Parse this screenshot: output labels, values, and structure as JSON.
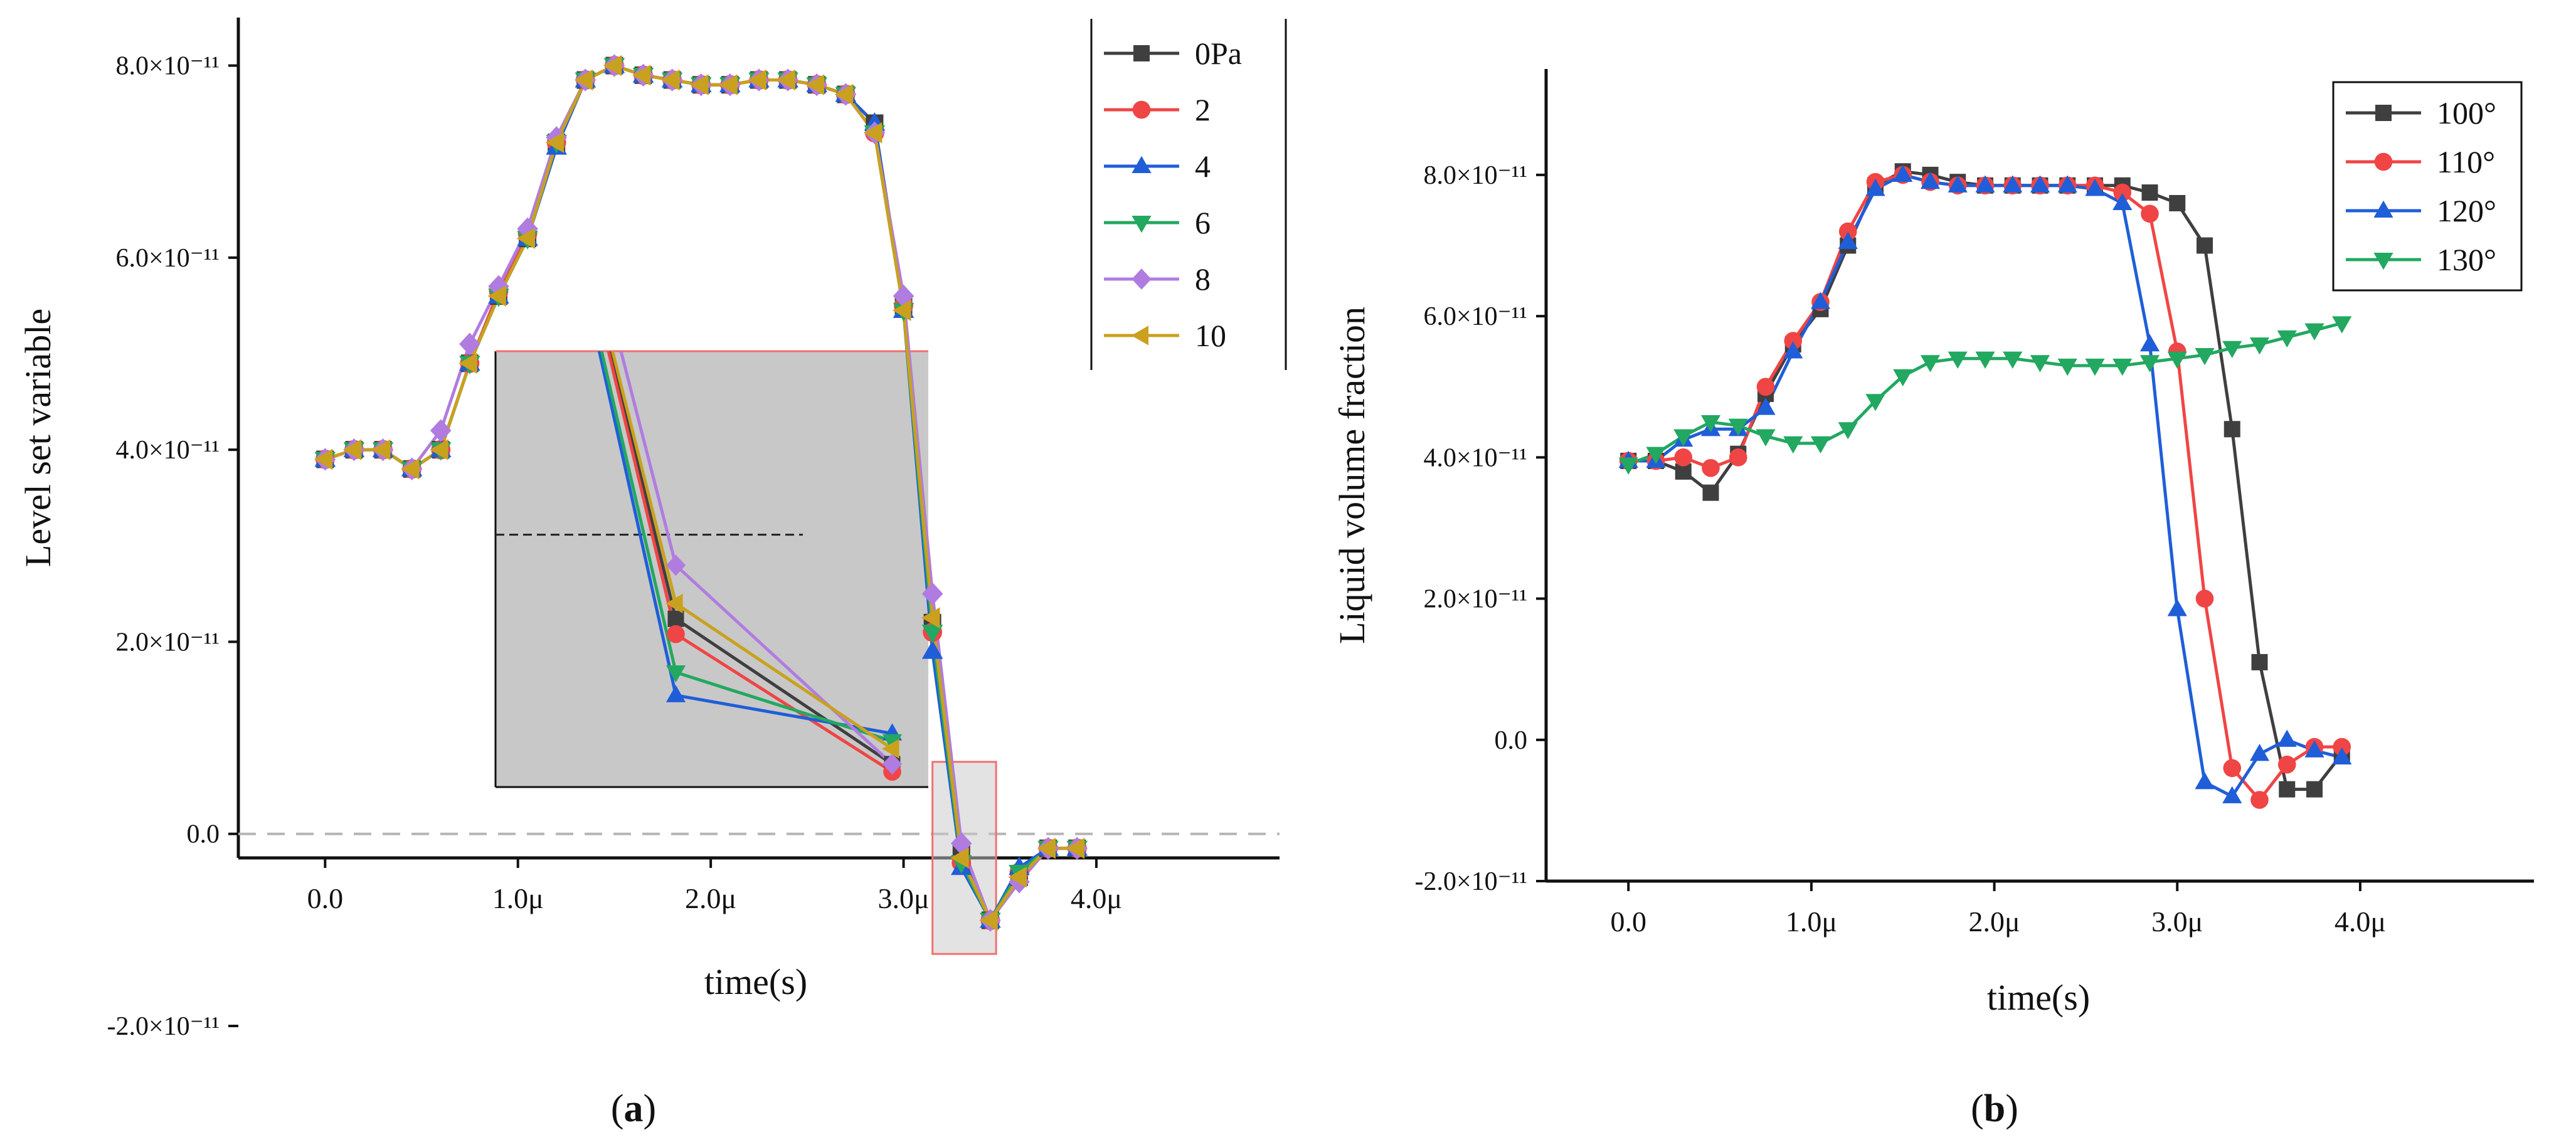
{
  "chart_data": [
    {
      "type": "line",
      "panel_label": "a",
      "xlabel": "time(s)",
      "ylabel": "Level set variable",
      "xlim": [
        -0.45,
        4.95
      ],
      "ylim": [
        -0.25,
        8.5
      ],
      "y_scale_note": "×10⁻¹¹",
      "xticks": [
        0,
        1,
        2,
        3,
        4
      ],
      "xtick_labels": [
        "0.0",
        "1.0μ",
        "2.0μ",
        "3.0μ",
        "4.0μ"
      ],
      "yticks": [
        -2,
        0,
        2,
        4,
        6,
        8
      ],
      "ytick_labels": [
        "-2.0×10⁻¹¹",
        "0.0",
        "2.0×10⁻¹¹",
        "4.0×10⁻¹¹",
        "6.0×10⁻¹¹",
        "8.0×10⁻¹¹"
      ],
      "reference_line_y": 0,
      "legend_position": "top-right",
      "x": [
        0,
        0.15,
        0.3,
        0.45,
        0.6,
        0.75,
        0.9,
        1.05,
        1.2,
        1.35,
        1.5,
        1.65,
        1.8,
        1.95,
        2.1,
        2.25,
        2.4,
        2.55,
        2.7,
        2.85,
        3.0,
        3.15,
        3.3,
        3.45,
        3.6,
        3.75,
        3.9
      ],
      "series": [
        {
          "name": "0Pa",
          "color": "#3f3f3f",
          "marker": "square",
          "values": [
            3.9,
            4.0,
            4.0,
            3.8,
            4.0,
            4.9,
            5.6,
            6.2,
            7.2,
            7.85,
            8.0,
            7.9,
            7.85,
            7.8,
            7.8,
            7.85,
            7.85,
            7.8,
            7.7,
            7.4,
            5.5,
            2.2,
            -0.2,
            -0.9,
            -0.45,
            -0.15,
            -0.15
          ]
        },
        {
          "name": "2",
          "color": "#f04545",
          "marker": "circle",
          "values": [
            3.9,
            4.0,
            4.0,
            3.8,
            4.0,
            4.9,
            5.65,
            6.25,
            7.2,
            7.85,
            8.0,
            7.9,
            7.85,
            7.8,
            7.8,
            7.85,
            7.85,
            7.8,
            7.7,
            7.3,
            5.5,
            2.1,
            -0.3,
            -0.9,
            -0.4,
            -0.15,
            -0.15
          ]
        },
        {
          "name": "4",
          "color": "#1f5ed8",
          "marker": "triangle-up",
          "values": [
            3.9,
            4.0,
            4.0,
            3.8,
            4.0,
            4.9,
            5.6,
            6.2,
            7.15,
            7.85,
            8.0,
            7.9,
            7.85,
            7.8,
            7.8,
            7.85,
            7.85,
            7.8,
            7.7,
            7.4,
            5.45,
            1.9,
            -0.35,
            -0.9,
            -0.35,
            -0.15,
            -0.15
          ]
        },
        {
          "name": "6",
          "color": "#22a860",
          "marker": "triangle-down",
          "values": [
            3.9,
            4.0,
            4.0,
            3.8,
            4.0,
            4.9,
            5.6,
            6.2,
            7.2,
            7.85,
            8.0,
            7.9,
            7.85,
            7.8,
            7.8,
            7.85,
            7.85,
            7.8,
            7.7,
            7.3,
            5.45,
            2.1,
            -0.3,
            -0.9,
            -0.4,
            -0.15,
            -0.15
          ]
        },
        {
          "name": "8",
          "color": "#b07ce0",
          "marker": "diamond",
          "values": [
            3.9,
            4.0,
            4.0,
            3.8,
            4.2,
            5.1,
            5.7,
            6.3,
            7.25,
            7.85,
            8.0,
            7.9,
            7.85,
            7.8,
            7.8,
            7.85,
            7.85,
            7.8,
            7.7,
            7.3,
            5.6,
            2.5,
            -0.1,
            -0.9,
            -0.5,
            -0.15,
            -0.15
          ]
        },
        {
          "name": "10",
          "color": "#c9a11e",
          "marker": "triangle-left",
          "values": [
            3.9,
            4.0,
            4.0,
            3.8,
            4.0,
            4.9,
            5.6,
            6.2,
            7.2,
            7.85,
            8.0,
            7.9,
            7.85,
            7.8,
            7.8,
            7.85,
            7.85,
            7.8,
            7.7,
            7.3,
            5.45,
            2.25,
            -0.25,
            -0.9,
            -0.45,
            -0.15,
            -0.15
          ]
        }
      ],
      "inset": {
        "description": "zoom of region near 3.3μ",
        "source_xlim": [
          3.15,
          3.48
        ],
        "source_ylim": [
          -1.25,
          0.75
        ],
        "xlim": [
          2.9,
          3.5
        ],
        "ylim": [
          -0.45,
          2.4
        ],
        "dashed_level": 1.2,
        "x": [
          2.9,
          3.15,
          3.45
        ],
        "series_values": {
          "0Pa": [
            5.45,
            0.65,
            -0.3
          ],
          "2": [
            5.5,
            0.55,
            -0.35
          ],
          "4": [
            5.45,
            0.15,
            -0.1
          ],
          "6": [
            5.4,
            0.3,
            -0.15
          ],
          "8": [
            5.6,
            1.0,
            -0.3
          ],
          "10": [
            5.45,
            0.75,
            -0.2
          ]
        }
      }
    },
    {
      "type": "line",
      "panel_label": "b",
      "xlabel": "time(s)",
      "ylabel": "Liquid volume fraction",
      "xlim": [
        -0.45,
        4.95
      ],
      "ylim": [
        -2.0,
        9.5
      ],
      "y_scale_note": "×10⁻¹¹",
      "xticks": [
        0,
        1,
        2,
        3,
        4
      ],
      "xtick_labels": [
        "0.0",
        "1.0μ",
        "2.0μ",
        "3.0μ",
        "4.0μ"
      ],
      "yticks": [
        -2,
        0,
        2,
        4,
        6,
        8
      ],
      "ytick_labels": [
        "-2.0×10⁻¹¹",
        "0.0",
        "2.0×10⁻¹¹",
        "4.0×10⁻¹¹",
        "6.0×10⁻¹¹",
        "8.0×10⁻¹¹"
      ],
      "legend_position": "top-right",
      "x": [
        0,
        0.15,
        0.3,
        0.45,
        0.6,
        0.75,
        0.9,
        1.05,
        1.2,
        1.35,
        1.5,
        1.65,
        1.8,
        1.95,
        2.1,
        2.25,
        2.4,
        2.55,
        2.7,
        2.85,
        3.0,
        3.15,
        3.3,
        3.45,
        3.6,
        3.75,
        3.9
      ],
      "series": [
        {
          "name": "100°",
          "color": "#3f3f3f",
          "marker": "square",
          "values": [
            3.95,
            3.95,
            3.8,
            3.5,
            4.05,
            4.9,
            5.6,
            6.1,
            7.0,
            7.85,
            8.05,
            8.0,
            7.9,
            7.85,
            7.85,
            7.85,
            7.85,
            7.85,
            7.85,
            7.75,
            7.6,
            7.0,
            4.4,
            1.1,
            -0.7,
            -0.7,
            -0.2
          ]
        },
        {
          "name": "110°",
          "color": "#f04545",
          "marker": "circle",
          "values": [
            3.95,
            3.95,
            4.0,
            3.85,
            4.0,
            5.0,
            5.65,
            6.2,
            7.2,
            7.9,
            8.0,
            7.9,
            7.85,
            7.85,
            7.85,
            7.85,
            7.85,
            7.85,
            7.75,
            7.45,
            5.5,
            2.0,
            -0.4,
            -0.85,
            -0.35,
            -0.1,
            -0.1
          ]
        },
        {
          "name": "120°",
          "color": "#1f5ed8",
          "marker": "triangle-up",
          "values": [
            3.95,
            3.95,
            4.25,
            4.4,
            4.4,
            4.7,
            5.5,
            6.2,
            7.05,
            7.8,
            8.0,
            7.9,
            7.85,
            7.85,
            7.85,
            7.85,
            7.85,
            7.8,
            7.6,
            5.6,
            1.85,
            -0.6,
            -0.8,
            -0.2,
            0.0,
            -0.15,
            -0.25
          ]
        },
        {
          "name": "130°",
          "color": "#22a860",
          "marker": "triangle-down",
          "values": [
            3.9,
            4.05,
            4.3,
            4.5,
            4.45,
            4.3,
            4.2,
            4.2,
            4.4,
            4.8,
            5.15,
            5.35,
            5.4,
            5.4,
            5.4,
            5.35,
            5.3,
            5.3,
            5.3,
            5.35,
            5.4,
            5.45,
            5.55,
            5.6,
            5.7,
            5.8,
            5.9
          ]
        }
      ]
    }
  ],
  "captions": {
    "a": "(a)",
    "b": "(b)"
  }
}
